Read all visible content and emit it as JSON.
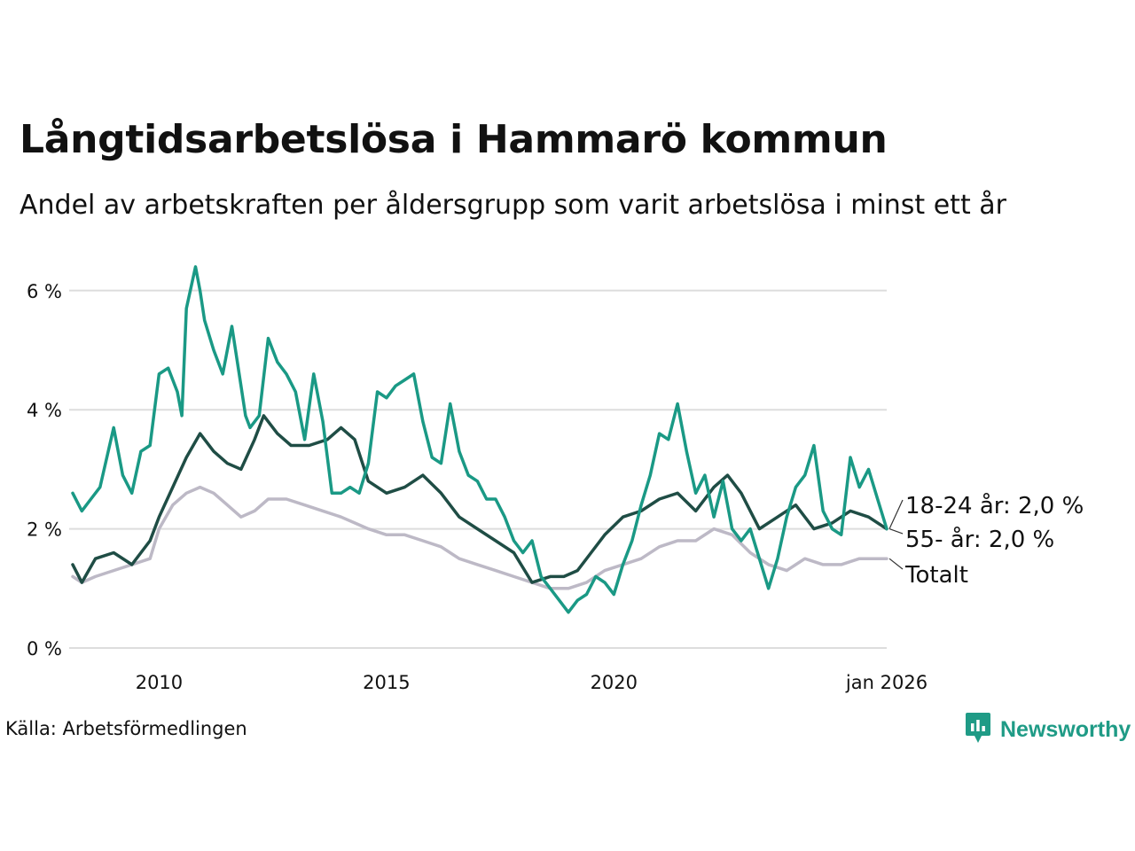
{
  "title": "Långtidsarbetslösa i Hammarö kommun",
  "subtitle": "Andel av arbetskraften per åldersgrupp som varit arbetslösa i minst ett år",
  "source": "Källa: Arbetsförmedlingen",
  "brand": "Newsworthy",
  "brand_icon": "newsworthy-logo-icon",
  "colors": {
    "youth": "#1a9985",
    "senior": "#1f4d45",
    "total": "#bdb9c6",
    "grid": "#dddddd",
    "brand": "#1f9b86"
  },
  "chart_data": {
    "type": "line",
    "title": "Långtidsarbetslösa i Hammarö kommun",
    "xlabel": "",
    "ylabel": "",
    "xlim": [
      2008.1,
      2026.0
    ],
    "ylim": [
      0,
      6.5
    ],
    "yticks": [
      0,
      2,
      4,
      6
    ],
    "ytick_labels": [
      "0 %",
      "2 %",
      "4 %",
      "6 %"
    ],
    "xticks": [
      2010,
      2015,
      2020,
      2026.0
    ],
    "xtick_labels": [
      "2010",
      "2015",
      "2020",
      "jan 2026"
    ],
    "grid": true,
    "series": [
      {
        "name": "Totalt",
        "label": "Totalt",
        "x": [
          2008.1,
          2008.3,
          2008.6,
          2009.0,
          2009.4,
          2009.8,
          2010.0,
          2010.3,
          2010.6,
          2010.9,
          2011.2,
          2011.5,
          2011.8,
          2012.1,
          2012.4,
          2012.8,
          2013.2,
          2013.6,
          2014.0,
          2014.3,
          2014.6,
          2015.0,
          2015.4,
          2015.8,
          2016.2,
          2016.6,
          2017.0,
          2017.4,
          2017.8,
          2018.2,
          2018.6,
          2019.0,
          2019.4,
          2019.8,
          2020.2,
          2020.6,
          2021.0,
          2021.4,
          2021.8,
          2022.2,
          2022.6,
          2023.0,
          2023.4,
          2023.8,
          2024.2,
          2024.6,
          2025.0,
          2025.4,
          2025.8,
          2026.0
        ],
        "y": [
          1.2,
          1.1,
          1.2,
          1.3,
          1.4,
          1.5,
          2.0,
          2.4,
          2.6,
          2.7,
          2.6,
          2.4,
          2.2,
          2.3,
          2.5,
          2.5,
          2.4,
          2.3,
          2.2,
          2.1,
          2.0,
          1.9,
          1.9,
          1.8,
          1.7,
          1.5,
          1.4,
          1.3,
          1.2,
          1.1,
          1.0,
          1.0,
          1.1,
          1.3,
          1.4,
          1.5,
          1.7,
          1.8,
          1.8,
          2.0,
          1.9,
          1.6,
          1.4,
          1.3,
          1.5,
          1.4,
          1.4,
          1.5,
          1.5,
          1.5
        ]
      },
      {
        "name": "55- år",
        "label": "55- år: 2,0 %",
        "x": [
          2008.1,
          2008.3,
          2008.6,
          2009.0,
          2009.4,
          2009.8,
          2010.0,
          2010.3,
          2010.6,
          2010.9,
          2011.2,
          2011.5,
          2011.8,
          2012.1,
          2012.3,
          2012.6,
          2012.9,
          2013.3,
          2013.7,
          2014.0,
          2014.3,
          2014.6,
          2015.0,
          2015.4,
          2015.8,
          2016.2,
          2016.6,
          2017.0,
          2017.4,
          2017.8,
          2018.2,
          2018.6,
          2018.9,
          2019.2,
          2019.5,
          2019.8,
          2020.2,
          2020.6,
          2021.0,
          2021.4,
          2021.8,
          2022.2,
          2022.5,
          2022.8,
          2023.2,
          2023.6,
          2024.0,
          2024.4,
          2024.8,
          2025.2,
          2025.6,
          2026.0
        ],
        "y": [
          1.4,
          1.1,
          1.5,
          1.6,
          1.4,
          1.8,
          2.2,
          2.7,
          3.2,
          3.6,
          3.3,
          3.1,
          3.0,
          3.5,
          3.9,
          3.6,
          3.4,
          3.4,
          3.5,
          3.7,
          3.5,
          2.8,
          2.6,
          2.7,
          2.9,
          2.6,
          2.2,
          2.0,
          1.8,
          1.6,
          1.1,
          1.2,
          1.2,
          1.3,
          1.6,
          1.9,
          2.2,
          2.3,
          2.5,
          2.6,
          2.3,
          2.7,
          2.9,
          2.6,
          2.0,
          2.2,
          2.4,
          2.0,
          2.1,
          2.3,
          2.2,
          2.0
        ]
      },
      {
        "name": "18-24 år",
        "label": "18-24 år: 2,0 %",
        "x": [
          2008.1,
          2008.3,
          2008.5,
          2008.7,
          2009.0,
          2009.2,
          2009.4,
          2009.6,
          2009.8,
          2010.0,
          2010.2,
          2010.4,
          2010.5,
          2010.6,
          2010.8,
          2010.9,
          2011.0,
          2011.2,
          2011.4,
          2011.6,
          2011.8,
          2011.9,
          2012.0,
          2012.2,
          2012.4,
          2012.6,
          2012.8,
          2013.0,
          2013.2,
          2013.4,
          2013.6,
          2013.8,
          2014.0,
          2014.2,
          2014.4,
          2014.6,
          2014.8,
          2015.0,
          2015.2,
          2015.4,
          2015.6,
          2015.8,
          2016.0,
          2016.2,
          2016.4,
          2016.6,
          2016.8,
          2017.0,
          2017.2,
          2017.4,
          2017.6,
          2017.8,
          2018.0,
          2018.2,
          2018.4,
          2018.6,
          2018.8,
          2019.0,
          2019.2,
          2019.4,
          2019.6,
          2019.8,
          2020.0,
          2020.2,
          2020.4,
          2020.6,
          2020.8,
          2021.0,
          2021.2,
          2021.4,
          2021.6,
          2021.8,
          2022.0,
          2022.2,
          2022.4,
          2022.6,
          2022.8,
          2023.0,
          2023.2,
          2023.4,
          2023.6,
          2023.8,
          2024.0,
          2024.2,
          2024.4,
          2024.6,
          2024.8,
          2025.0,
          2025.2,
          2025.4,
          2025.6,
          2025.8,
          2026.0
        ],
        "y": [
          2.6,
          2.3,
          2.5,
          2.7,
          3.7,
          2.9,
          2.6,
          3.3,
          3.4,
          4.6,
          4.7,
          4.3,
          3.9,
          5.7,
          6.4,
          6.0,
          5.5,
          5.0,
          4.6,
          5.4,
          4.4,
          3.9,
          3.7,
          3.9,
          5.2,
          4.8,
          4.6,
          4.3,
          3.5,
          4.6,
          3.8,
          2.6,
          2.6,
          2.7,
          2.6,
          3.1,
          4.3,
          4.2,
          4.4,
          4.5,
          4.6,
          3.8,
          3.2,
          3.1,
          4.1,
          3.3,
          2.9,
          2.8,
          2.5,
          2.5,
          2.2,
          1.8,
          1.6,
          1.8,
          1.2,
          1.0,
          0.8,
          0.6,
          0.8,
          0.9,
          1.2,
          1.1,
          0.9,
          1.4,
          1.8,
          2.4,
          2.9,
          3.6,
          3.5,
          4.1,
          3.3,
          2.6,
          2.9,
          2.2,
          2.8,
          2.0,
          1.8,
          2.0,
          1.5,
          1.0,
          1.5,
          2.2,
          2.7,
          2.9,
          3.4,
          2.3,
          2.0,
          1.9,
          3.2,
          2.7,
          3.0,
          2.5,
          2.0
        ]
      }
    ]
  }
}
